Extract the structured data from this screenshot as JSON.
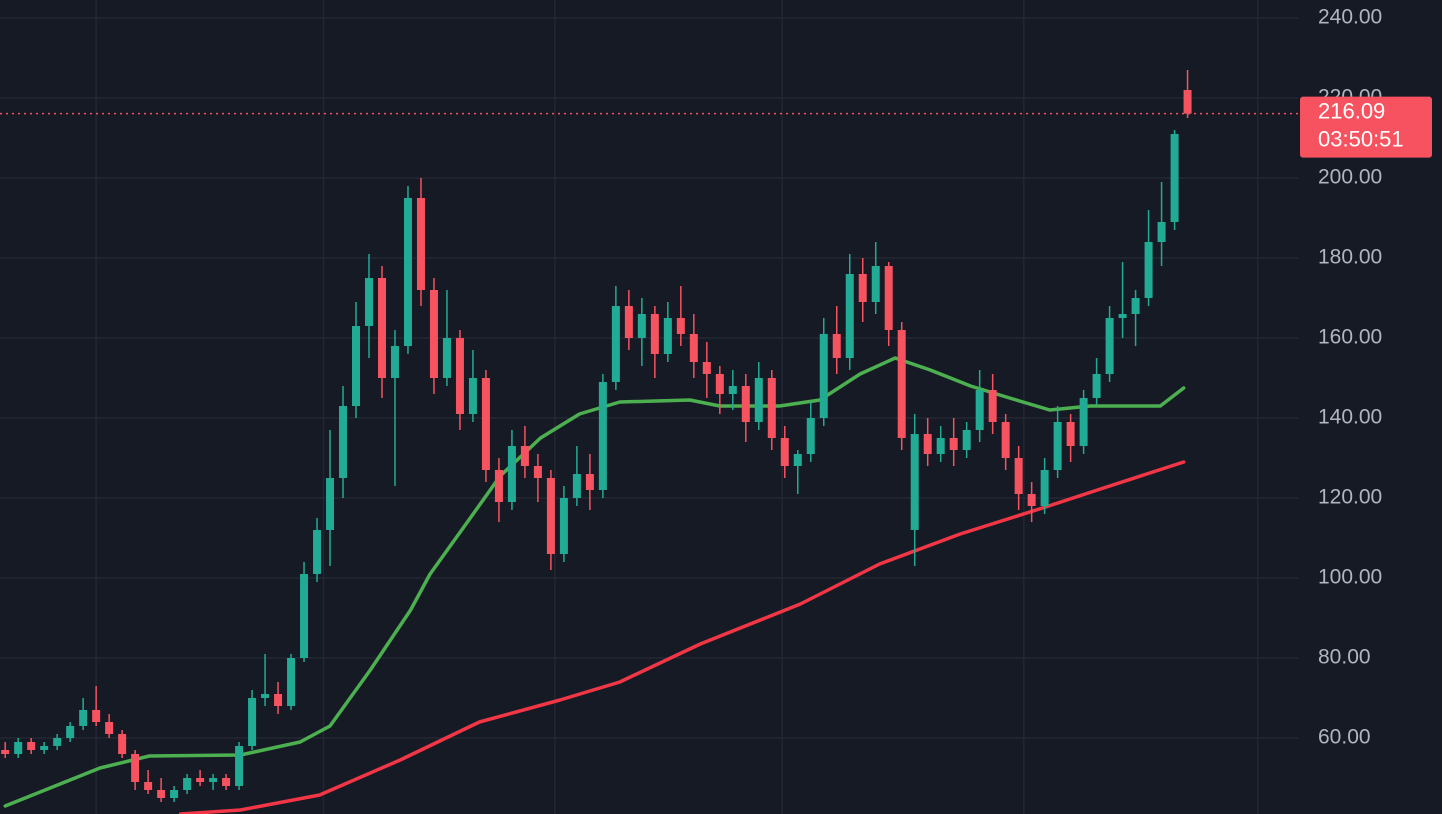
{
  "chart_data": {
    "type": "candlestick",
    "up_color": "#22ab94",
    "down_color": "#f7525f",
    "ohlc": [
      [
        57,
        59,
        55,
        56
      ],
      [
        56,
        60,
        55,
        59
      ],
      [
        59,
        60,
        56,
        57
      ],
      [
        57,
        59,
        56,
        58
      ],
      [
        58,
        61,
        57,
        60
      ],
      [
        60,
        64,
        59,
        63
      ],
      [
        63,
        70,
        62,
        67
      ],
      [
        67,
        73,
        63,
        64
      ],
      [
        64,
        66,
        60,
        61
      ],
      [
        61,
        62,
        55,
        56
      ],
      [
        56,
        57,
        47,
        49
      ],
      [
        49,
        52,
        46,
        47
      ],
      [
        47,
        50,
        44,
        45
      ],
      [
        45,
        48,
        44,
        47
      ],
      [
        47,
        51,
        46,
        50
      ],
      [
        50,
        52,
        48,
        49
      ],
      [
        49,
        51,
        47,
        50
      ],
      [
        50,
        51,
        47,
        48
      ],
      [
        48,
        59,
        47,
        58
      ],
      [
        58,
        72,
        57,
        70
      ],
      [
        70,
        81,
        68,
        71
      ],
      [
        71,
        74,
        66,
        68
      ],
      [
        68,
        81,
        67,
        80
      ],
      [
        80,
        104,
        79,
        101
      ],
      [
        101,
        115,
        99,
        112
      ],
      [
        112,
        137,
        103,
        125
      ],
      [
        125,
        148,
        120,
        143
      ],
      [
        143,
        169,
        140,
        163
      ],
      [
        163,
        181,
        155,
        175
      ],
      [
        175,
        178,
        145,
        150
      ],
      [
        150,
        162,
        123,
        158
      ],
      [
        158,
        198,
        156,
        195
      ],
      [
        195,
        200,
        168,
        172
      ],
      [
        172,
        175,
        146,
        150
      ],
      [
        150,
        172,
        148,
        160
      ],
      [
        160,
        162,
        137,
        141
      ],
      [
        141,
        157,
        139,
        150
      ],
      [
        150,
        152,
        124,
        127
      ],
      [
        127,
        130,
        114,
        119
      ],
      [
        119,
        137,
        117,
        133
      ],
      [
        133,
        138,
        125,
        128
      ],
      [
        128,
        131,
        119,
        125
      ],
      [
        125,
        127,
        102,
        106
      ],
      [
        106,
        123,
        104,
        120
      ],
      [
        120,
        133,
        118,
        126
      ],
      [
        126,
        131,
        117,
        122
      ],
      [
        122,
        151,
        120,
        149
      ],
      [
        149,
        173,
        147,
        168
      ],
      [
        168,
        172,
        157,
        160
      ],
      [
        160,
        170,
        153,
        166
      ],
      [
        166,
        168,
        150,
        156
      ],
      [
        156,
        169,
        154,
        165
      ],
      [
        165,
        173,
        158,
        161
      ],
      [
        161,
        166,
        150,
        154
      ],
      [
        154,
        159,
        145,
        151
      ],
      [
        151,
        153,
        141,
        146
      ],
      [
        146,
        152,
        142,
        148
      ],
      [
        148,
        151,
        134,
        139
      ],
      [
        139,
        154,
        137,
        150
      ],
      [
        150,
        152,
        132,
        135
      ],
      [
        135,
        138,
        125,
        128
      ],
      [
        128,
        132,
        121,
        131
      ],
      [
        131,
        144,
        129,
        140
      ],
      [
        140,
        165,
        138,
        161
      ],
      [
        161,
        168,
        151,
        155
      ],
      [
        155,
        181,
        152,
        176
      ],
      [
        176,
        180,
        164,
        169
      ],
      [
        169,
        184,
        166,
        178
      ],
      [
        178,
        179,
        158,
        162
      ],
      [
        162,
        164,
        132,
        135
      ],
      [
        112,
        141,
        103,
        136
      ],
      [
        136,
        140,
        128,
        131
      ],
      [
        131,
        138,
        129,
        135
      ],
      [
        135,
        140,
        128,
        132
      ],
      [
        132,
        139,
        130,
        137
      ],
      [
        137,
        152,
        134,
        147
      ],
      [
        147,
        151,
        136,
        139
      ],
      [
        139,
        141,
        127,
        130
      ],
      [
        130,
        133,
        117,
        121
      ],
      [
        121,
        124,
        114,
        118
      ],
      [
        118,
        130,
        116,
        127
      ],
      [
        127,
        143,
        125,
        139
      ],
      [
        139,
        141,
        129,
        133
      ],
      [
        133,
        147,
        131,
        145
      ],
      [
        145,
        155,
        143,
        151
      ],
      [
        151,
        168,
        149,
        165
      ],
      [
        165,
        179,
        160,
        166
      ],
      [
        166,
        172,
        158,
        170
      ],
      [
        170,
        192,
        168,
        184
      ],
      [
        184,
        199,
        178,
        189
      ],
      [
        189,
        212,
        187,
        211
      ],
      [
        222,
        227,
        215,
        216.09
      ]
    ],
    "series": [
      {
        "color": "#4caf50",
        "x": [
          0,
          7.3,
          11.1,
          18.1,
          22.7,
          25,
          28.1,
          31.2,
          32.7,
          35.8,
          38.1,
          41.2,
          44.2,
          47.3,
          52.7,
          55,
          59.6,
          62.7,
          65.8,
          68.5,
          71.2,
          74.3,
          77.3,
          80.4,
          83.5,
          88.9,
          90.7
        ],
        "values": [
          43,
          52.5,
          55.5,
          55.75,
          59,
          63,
          77,
          92,
          101,
          115,
          125.5,
          135,
          141,
          144,
          144.5,
          143,
          143,
          144.5,
          151,
          155,
          152,
          148,
          145,
          142,
          143,
          143,
          147.5
        ]
      },
      {
        "color": "#f23645",
        "x": [
          13.5,
          18.1,
          24.2,
          30.4,
          36.5,
          42.7,
          47.3,
          53.5,
          61.2,
          67.3,
          73.5,
          79.6,
          84.3,
          90.7
        ],
        "values": [
          41,
          42,
          45.75,
          54.5,
          64,
          69.5,
          74,
          83.5,
          93.5,
          103.5,
          111,
          117.25,
          122.25,
          129
        ]
      }
    ],
    "xlim": [
      -0.4,
      99.5
    ],
    "xticks": [
      7,
      24.5,
      42.3,
      59.8,
      78.4,
      96.4
    ],
    "ylim": [
      41,
      244.5
    ],
    "yticks": [
      {
        "value": 60,
        "label": "60.00"
      },
      {
        "value": 80,
        "label": "80.00"
      },
      {
        "value": 100,
        "label": "100.00"
      },
      {
        "value": 120,
        "label": "120.00"
      },
      {
        "value": 140,
        "label": "140.00"
      },
      {
        "value": 160,
        "label": "160.00"
      },
      {
        "value": 180,
        "label": "180.00"
      },
      {
        "value": 200,
        "label": "200.00"
      },
      {
        "value": 220,
        "label": "220.00"
      },
      {
        "value": 240,
        "label": "240.00"
      }
    ],
    "grid": true,
    "last_price": 216.09,
    "countdown": "03:50:51"
  }
}
